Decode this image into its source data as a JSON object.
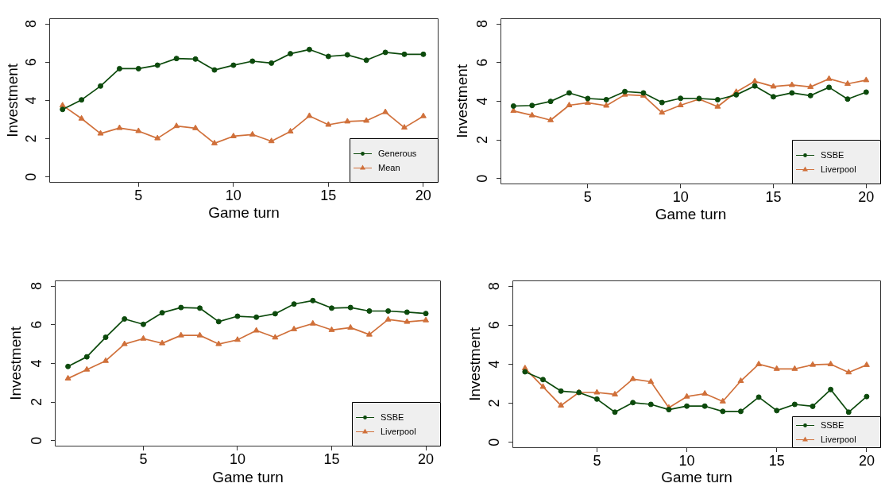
{
  "chart_data": [
    {
      "type": "line",
      "xlabel": "Game turn",
      "ylabel": "Investment",
      "x": [
        1,
        2,
        3,
        4,
        5,
        6,
        7,
        8,
        9,
        10,
        11,
        12,
        13,
        14,
        15,
        16,
        17,
        18,
        19,
        20
      ],
      "xlim": [
        0.3,
        20.8
      ],
      "ylim": [
        -0.3,
        8.3
      ],
      "xticks": [
        5,
        10,
        15,
        20
      ],
      "yticks": [
        0,
        2,
        4,
        6,
        8
      ],
      "legend": "bottom right",
      "series": [
        {
          "name": "Generous",
          "color": "#0c4a0c",
          "marker": "circle",
          "values": [
            3.53,
            4.03,
            4.75,
            5.66,
            5.66,
            5.84,
            6.19,
            6.16,
            5.59,
            5.84,
            6.05,
            5.95,
            6.44,
            6.66,
            6.3,
            6.38,
            6.1,
            6.51,
            6.41,
            6.41
          ]
        },
        {
          "name": "Mean",
          "color": "#d0703a",
          "marker": "triangle",
          "values": [
            3.74,
            3.05,
            2.27,
            2.56,
            2.4,
            2.02,
            2.66,
            2.55,
            1.76,
            2.13,
            2.22,
            1.87,
            2.38,
            3.19,
            2.73,
            2.9,
            2.94,
            3.39,
            2.58,
            3.18
          ]
        }
      ]
    },
    {
      "type": "line",
      "xlabel": "Game turn",
      "ylabel": "Investment",
      "x": [
        1,
        2,
        3,
        4,
        5,
        6,
        7,
        8,
        9,
        10,
        11,
        12,
        13,
        14,
        15,
        16,
        17,
        18,
        19,
        20
      ],
      "xlim": [
        0.3,
        20.8
      ],
      "ylim": [
        -0.3,
        8.3
      ],
      "xticks": [
        5,
        10,
        15,
        20
      ],
      "yticks": [
        0,
        2,
        4,
        6,
        8
      ],
      "legend": "bottom right",
      "series": [
        {
          "name": "SSBE",
          "color": "#0c4a0c",
          "marker": "circle",
          "values": [
            3.75,
            3.78,
            3.99,
            4.43,
            4.14,
            4.08,
            4.5,
            4.43,
            3.93,
            4.15,
            4.14,
            4.08,
            4.33,
            4.79,
            4.23,
            4.43,
            4.29,
            4.72,
            4.11,
            4.47
          ]
        },
        {
          "name": "Liverpool",
          "color": "#d0703a",
          "marker": "triangle",
          "values": [
            3.5,
            3.27,
            3.02,
            3.79,
            3.92,
            3.77,
            4.34,
            4.29,
            3.41,
            3.79,
            4.11,
            3.72,
            4.48,
            5.03,
            4.76,
            4.84,
            4.74,
            5.16,
            4.9,
            5.09
          ]
        }
      ]
    },
    {
      "type": "line",
      "xlabel": "Game turn",
      "ylabel": "Investment",
      "x": [
        1,
        2,
        3,
        4,
        5,
        6,
        7,
        8,
        9,
        10,
        11,
        12,
        13,
        14,
        15,
        16,
        17,
        18,
        19,
        20
      ],
      "xlim": [
        0.3,
        20.8
      ],
      "ylim": [
        -0.3,
        8.3
      ],
      "xticks": [
        5,
        10,
        15,
        20
      ],
      "yticks": [
        0,
        2,
        4,
        6,
        8
      ],
      "legend": "bottom right",
      "series": [
        {
          "name": "SSBE",
          "color": "#0c4a0c",
          "marker": "circle",
          "values": [
            3.84,
            4.34,
            5.35,
            6.3,
            6.02,
            6.62,
            6.89,
            6.86,
            6.16,
            6.44,
            6.39,
            6.57,
            7.07,
            7.25,
            6.86,
            6.89,
            6.71,
            6.71,
            6.65,
            6.58
          ]
        },
        {
          "name": "Liverpool",
          "color": "#d0703a",
          "marker": "triangle",
          "values": [
            3.22,
            3.68,
            4.13,
            5.0,
            5.28,
            5.04,
            5.45,
            5.45,
            5.0,
            5.22,
            5.7,
            5.34,
            5.77,
            6.06,
            5.73,
            5.85,
            5.49,
            6.27,
            6.15,
            6.23
          ]
        }
      ]
    },
    {
      "type": "line",
      "xlabel": "Game turn",
      "ylabel": "Investment",
      "x": [
        1,
        2,
        3,
        4,
        5,
        6,
        7,
        8,
        9,
        10,
        11,
        12,
        13,
        14,
        15,
        16,
        17,
        18,
        19,
        20
      ],
      "xlim": [
        0.3,
        20.8
      ],
      "ylim": [
        -0.3,
        8.3
      ],
      "xticks": [
        5,
        10,
        15,
        20
      ],
      "yticks": [
        0,
        2,
        4,
        6,
        8
      ],
      "legend": "bottom right",
      "series": [
        {
          "name": "SSBE",
          "color": "#0c4a0c",
          "marker": "circle",
          "values": [
            3.61,
            3.21,
            2.62,
            2.55,
            2.21,
            1.54,
            2.03,
            1.94,
            1.67,
            1.85,
            1.85,
            1.58,
            1.58,
            2.31,
            1.62,
            1.94,
            1.84,
            2.7,
            1.54,
            2.34
          ]
        },
        {
          "name": "Liverpool",
          "color": "#d0703a",
          "marker": "triangle",
          "values": [
            3.79,
            2.84,
            1.88,
            2.55,
            2.55,
            2.45,
            3.24,
            3.1,
            1.77,
            2.34,
            2.49,
            2.09,
            3.14,
            4.0,
            3.76,
            3.76,
            3.97,
            4.0,
            3.58,
            3.96
          ]
        }
      ]
    }
  ]
}
